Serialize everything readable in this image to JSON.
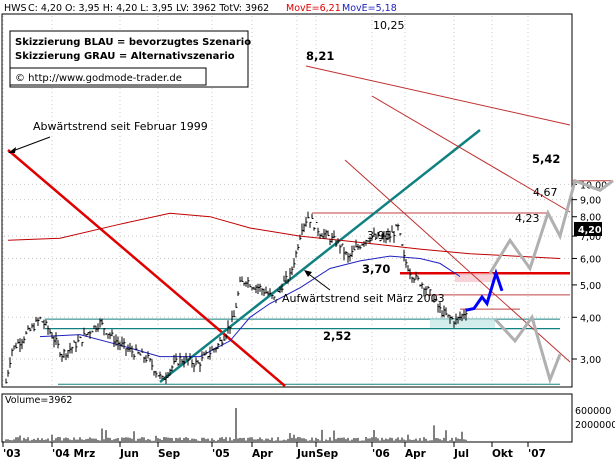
{
  "header": {
    "symbol": "HWS",
    "ohlc": "C: 4,20 O: 3,95 H: 4,20 L: 3,95 LV: 3962 TotV: 3962",
    "ma1_label": "MovE=6,21",
    "ma1_color": "#e00000",
    "ma2_label": "MovE=5,18",
    "ma2_color": "#2020c0"
  },
  "legend": {
    "line1": "Skizzierung BLAU = bevorzugtes Szenario",
    "line2": "Skizzierung GRAU = Alternativszenario",
    "copyright": "© http://www.godmode-trader.de"
  },
  "chart_data": {
    "type": "line",
    "price_scale": "log",
    "y_ticks": [
      "10,00",
      "9,00",
      "8,00",
      "7,00",
      "6,00",
      "5,00",
      "4,00",
      "3,00"
    ],
    "x_ticks": [
      "'03",
      "'04 Mrz",
      "Jun",
      "Sep",
      "'05",
      "Apr",
      "Jun",
      "Sep",
      "'06",
      "Apr",
      "Jul",
      "Okt",
      "'07"
    ],
    "last_price": "4,20",
    "levels": [
      {
        "label": "10,25",
        "value": 10.25
      },
      {
        "label": "8,21",
        "value": 8.21
      },
      {
        "label": "5,42",
        "value": 5.42
      },
      {
        "label": "4,67",
        "value": 4.67
      },
      {
        "label": "4,23",
        "value": 4.23
      },
      {
        "label": "3,95",
        "value": 3.95
      },
      {
        "label": "3,70",
        "value": 3.7
      },
      {
        "label": "2,52",
        "value": 2.52
      }
    ],
    "annotations": {
      "downtrend": "Abwärtstrend seit Februar 1999",
      "uptrend": "Aufwärtstrend seit März 2003"
    },
    "volume": {
      "label": "Volume=3962",
      "y_ticks": [
        "600000",
        "2000000"
      ]
    },
    "colors": {
      "price": "#000000",
      "ma_red": "#c00000",
      "ma_blue": "#2020c0",
      "trend_red": "#e00000",
      "trend_teal": "#108080",
      "scenario_blue": "#0000ff",
      "scenario_grey": "#b0b0b0"
    }
  }
}
